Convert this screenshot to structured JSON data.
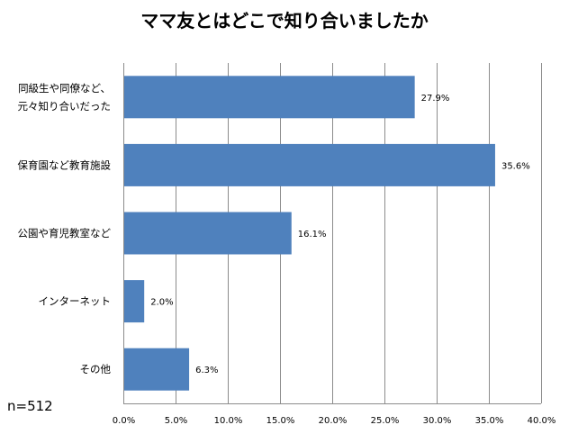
{
  "chart_data": {
    "type": "bar",
    "orientation": "horizontal",
    "title": "ママ友とはどこで知り合いましたか",
    "categories": [
      [
        "同級生や同僚など、",
        "元々知り合いだった"
      ],
      [
        "保育園など教育施設"
      ],
      [
        "公園や育児教室など"
      ],
      [
        "インターネット"
      ],
      [
        "その他"
      ]
    ],
    "values": [
      27.9,
      35.6,
      16.1,
      2.0,
      6.3
    ],
    "data_labels": [
      "27.9%",
      "35.6%",
      "16.1%",
      "2.0%",
      "6.3%"
    ],
    "xlim": [
      0,
      40
    ],
    "xticks": [
      "0.0%",
      "5.0%",
      "10.0%",
      "15.0%",
      "20.0%",
      "25.0%",
      "30.0%",
      "35.0%",
      "40.0%"
    ],
    "grid": true,
    "bar_color": "#4F81BD",
    "grid_color": "#8C8C8C",
    "xlabel": "",
    "ylabel": ""
  },
  "note": "n=512"
}
